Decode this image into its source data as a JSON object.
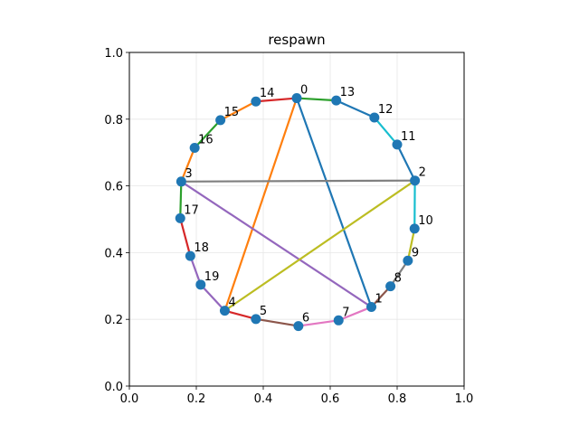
{
  "title": "respawn",
  "chart_data": {
    "type": "scatter",
    "title": "respawn",
    "xlabel": "",
    "ylabel": "",
    "xlim": [
      0.0,
      1.0
    ],
    "ylim": [
      0.0,
      1.0
    ],
    "xticks": [
      "0.0",
      "0.2",
      "0.4",
      "0.6",
      "0.8",
      "1.0"
    ],
    "yticks": [
      "0.0",
      "0.2",
      "0.4",
      "0.6",
      "0.8",
      "1.0"
    ],
    "grid": true,
    "node_color": "#1f77b4",
    "nodes": [
      {
        "label": "0",
        "x": 0.5,
        "y": 0.863
      },
      {
        "label": "1",
        "x": 0.723,
        "y": 0.237
      },
      {
        "label": "2",
        "x": 0.853,
        "y": 0.616
      },
      {
        "label": "3",
        "x": 0.155,
        "y": 0.613
      },
      {
        "label": "4",
        "x": 0.285,
        "y": 0.226
      },
      {
        "label": "5",
        "x": 0.378,
        "y": 0.201
      },
      {
        "label": "6",
        "x": 0.505,
        "y": 0.18
      },
      {
        "label": "7",
        "x": 0.625,
        "y": 0.197
      },
      {
        "label": "8",
        "x": 0.78,
        "y": 0.299
      },
      {
        "label": "9",
        "x": 0.832,
        "y": 0.376
      },
      {
        "label": "10",
        "x": 0.852,
        "y": 0.472
      },
      {
        "label": "11",
        "x": 0.8,
        "y": 0.724
      },
      {
        "label": "12",
        "x": 0.732,
        "y": 0.805
      },
      {
        "label": "13",
        "x": 0.618,
        "y": 0.856
      },
      {
        "label": "14",
        "x": 0.378,
        "y": 0.853
      },
      {
        "label": "15",
        "x": 0.272,
        "y": 0.797
      },
      {
        "label": "16",
        "x": 0.195,
        "y": 0.714
      },
      {
        "label": "17",
        "x": 0.152,
        "y": 0.503
      },
      {
        "label": "18",
        "x": 0.182,
        "y": 0.39
      },
      {
        "label": "19",
        "x": 0.213,
        "y": 0.304
      }
    ],
    "edges": [
      {
        "from": 0,
        "to": 1,
        "color": "#1f77b4"
      },
      {
        "from": 0,
        "to": 4,
        "color": "#ff7f0e"
      },
      {
        "from": 0,
        "to": 13,
        "color": "#2ca02c"
      },
      {
        "from": 0,
        "to": 14,
        "color": "#d62728"
      },
      {
        "from": 1,
        "to": 3,
        "color": "#9467bd"
      },
      {
        "from": 1,
        "to": 8,
        "color": "#8c564b"
      },
      {
        "from": 1,
        "to": 7,
        "color": "#e377c2"
      },
      {
        "from": 2,
        "to": 3,
        "color": "#7f7f7f"
      },
      {
        "from": 2,
        "to": 4,
        "color": "#bcbd22"
      },
      {
        "from": 2,
        "to": 10,
        "color": "#17becf"
      },
      {
        "from": 2,
        "to": 11,
        "color": "#1f77b4"
      },
      {
        "from": 3,
        "to": 16,
        "color": "#ff7f0e"
      },
      {
        "from": 3,
        "to": 17,
        "color": "#2ca02c"
      },
      {
        "from": 4,
        "to": 5,
        "color": "#d62728"
      },
      {
        "from": 4,
        "to": 19,
        "color": "#9467bd"
      },
      {
        "from": 5,
        "to": 6,
        "color": "#8c564b"
      },
      {
        "from": 6,
        "to": 7,
        "color": "#e377c2"
      },
      {
        "from": 8,
        "to": 9,
        "color": "#7f7f7f"
      },
      {
        "from": 9,
        "to": 10,
        "color": "#bcbd22"
      },
      {
        "from": 11,
        "to": 12,
        "color": "#17becf"
      },
      {
        "from": 12,
        "to": 13,
        "color": "#1f77b4"
      },
      {
        "from": 14,
        "to": 15,
        "color": "#ff7f0e"
      },
      {
        "from": 15,
        "to": 16,
        "color": "#2ca02c"
      },
      {
        "from": 17,
        "to": 18,
        "color": "#d62728"
      },
      {
        "from": 18,
        "to": 19,
        "color": "#9467bd"
      }
    ]
  }
}
